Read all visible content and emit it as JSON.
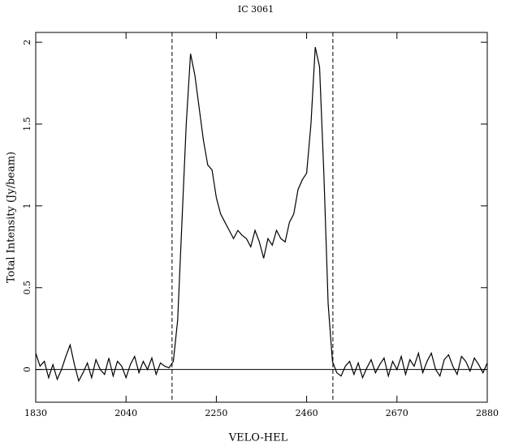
{
  "chart_data": {
    "type": "line",
    "title": "IC 3061",
    "x_label": "VELO-HEL",
    "y_label": "Total Intensity (Jy/beam)",
    "x": [
      1830,
      1840,
      1850,
      1860,
      1870,
      1880,
      1890,
      1900,
      1910,
      1920,
      1930,
      1940,
      1950,
      1960,
      1970,
      1980,
      1990,
      2000,
      2010,
      2020,
      2030,
      2040,
      2050,
      2060,
      2070,
      2080,
      2090,
      2100,
      2110,
      2120,
      2130,
      2140,
      2150,
      2160,
      2170,
      2180,
      2190,
      2200,
      2210,
      2220,
      2230,
      2240,
      2250,
      2260,
      2270,
      2280,
      2290,
      2300,
      2310,
      2320,
      2330,
      2340,
      2350,
      2360,
      2370,
      2380,
      2390,
      2400,
      2410,
      2420,
      2430,
      2440,
      2450,
      2460,
      2470,
      2480,
      2490,
      2500,
      2510,
      2520,
      2530,
      2540,
      2550,
      2560,
      2570,
      2580,
      2590,
      2600,
      2610,
      2620,
      2630,
      2640,
      2650,
      2660,
      2670,
      2680,
      2690,
      2700,
      2710,
      2720,
      2730,
      2740,
      2750,
      2760,
      2770,
      2780,
      2790,
      2800,
      2810,
      2820,
      2830,
      2840,
      2850,
      2860,
      2870,
      2880
    ],
    "series": [
      {
        "color": "#000000",
        "values": [
          0.1,
          0.02,
          0.05,
          -0.05,
          0.03,
          -0.06,
          0.0,
          0.08,
          0.15,
          0.03,
          -0.07,
          -0.02,
          0.04,
          -0.05,
          0.06,
          0.0,
          -0.03,
          0.07,
          -0.04,
          0.05,
          0.02,
          -0.05,
          0.03,
          0.08,
          -0.02,
          0.05,
          0.0,
          0.07,
          -0.03,
          0.04,
          0.02,
          0.01,
          0.05,
          0.3,
          0.9,
          1.5,
          1.93,
          1.8,
          1.6,
          1.4,
          1.25,
          1.22,
          1.05,
          0.95,
          0.9,
          0.85,
          0.8,
          0.85,
          0.82,
          0.8,
          0.75,
          0.85,
          0.78,
          0.68,
          0.8,
          0.76,
          0.85,
          0.8,
          0.78,
          0.9,
          0.95,
          1.1,
          1.16,
          1.2,
          1.5,
          1.97,
          1.85,
          1.2,
          0.4,
          0.05,
          -0.02,
          -0.04,
          0.02,
          0.05,
          -0.03,
          0.04,
          -0.05,
          0.01,
          0.06,
          -0.02,
          0.03,
          0.07,
          -0.04,
          0.05,
          0.0,
          0.08,
          -0.03,
          0.06,
          0.02,
          0.1,
          -0.02,
          0.05,
          0.1,
          0.0,
          -0.04,
          0.06,
          0.09,
          0.02,
          -0.03,
          0.08,
          0.05,
          -0.01,
          0.07,
          0.03,
          -0.02,
          0.04
        ]
      }
    ],
    "xlim": [
      1830,
      2880
    ],
    "ylim": [
      -0.2,
      2.06
    ],
    "xticks": [
      1830,
      2040,
      2250,
      2460,
      2670,
      2880
    ],
    "yticks": [
      0,
      0.5,
      1,
      1.5,
      2
    ],
    "baseline": 0,
    "vlines": [
      2147,
      2521
    ]
  }
}
